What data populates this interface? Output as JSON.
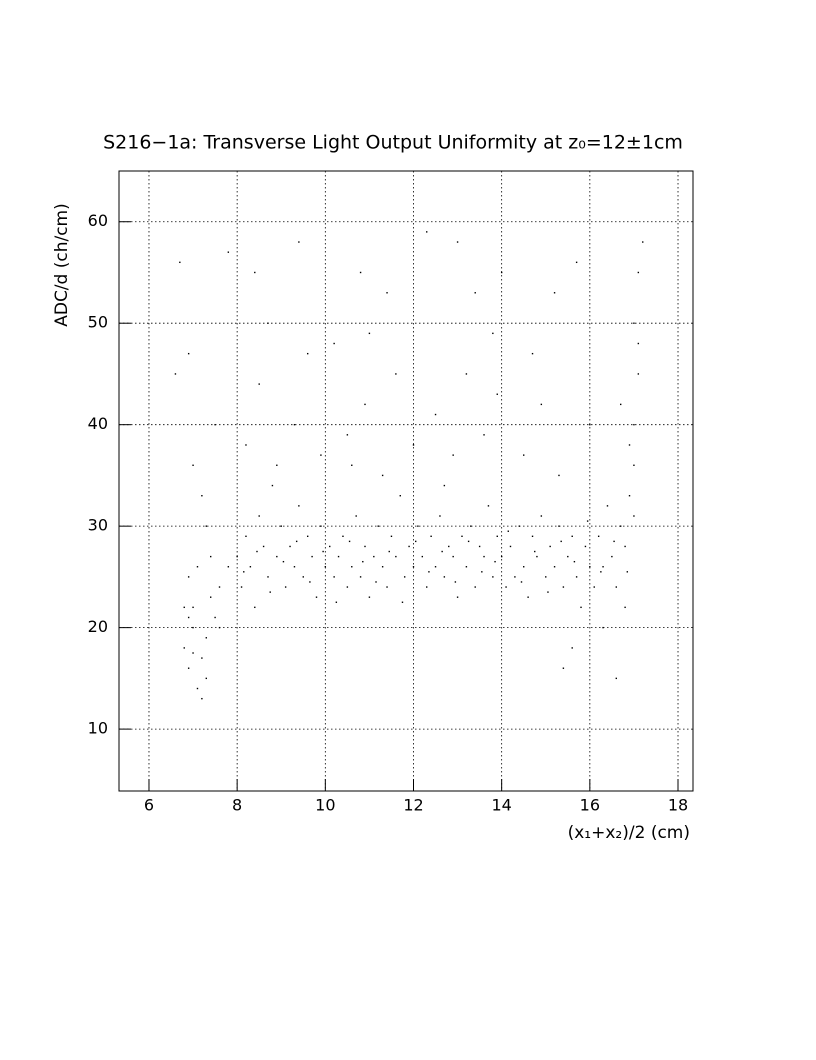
{
  "chart_data": {
    "type": "scatter",
    "title": "S216−1a: Transverse Light Output Uniformity at z₀=12±1cm",
    "x_label": "(x₁+x₂)/2 (cm)",
    "y_label": "ADC/d (ch/cm)",
    "color": "#000000",
    "grid": true,
    "xlim": [
      5.32,
      18.34
    ],
    "ylim": [
      3.9,
      65
    ],
    "xticks": [
      6,
      8,
      10,
      12,
      14,
      16,
      18
    ],
    "yticks": [
      10,
      20,
      30,
      40,
      50,
      60
    ],
    "x": [
      6.8,
      6.9,
      7.0,
      7.1,
      7.2,
      7.0,
      6.9,
      7.3,
      7.4,
      7.2,
      7.5,
      7.6,
      7.1,
      6.9,
      7.3,
      7.0,
      6.8,
      7.4,
      7.6,
      7.8,
      6.6,
      6.9,
      7.2,
      7.0,
      6.7,
      7.8,
      7.5,
      7.3,
      8.0,
      8.1,
      8.2,
      8.3,
      8.5,
      8.4,
      8.6,
      8.7,
      8.8,
      8.9,
      9.0,
      9.1,
      9.2,
      9.3,
      9.4,
      9.5,
      9.6,
      9.7,
      9.8,
      9.9,
      10.0,
      10.1,
      8.2,
      8.5,
      8.9,
      9.3,
      9.6,
      8.4,
      9.4,
      10.2,
      9.9,
      8.7,
      10.2,
      10.3,
      10.4,
      10.5,
      10.6,
      10.7,
      10.8,
      10.9,
      11.0,
      11.1,
      11.2,
      11.3,
      11.4,
      11.5,
      11.6,
      11.7,
      11.8,
      11.9,
      12.0,
      12.1,
      10.5,
      10.9,
      11.3,
      11.6,
      10.8,
      11.4,
      12.0,
      12.3,
      11.0,
      10.6,
      12.2,
      12.3,
      12.4,
      12.5,
      12.6,
      12.7,
      12.8,
      12.9,
      13.0,
      13.1,
      13.2,
      13.3,
      13.4,
      13.5,
      13.6,
      13.7,
      13.8,
      13.9,
      14.0,
      14.1,
      12.5,
      12.9,
      13.2,
      13.6,
      13.0,
      13.4,
      13.8,
      12.7,
      14.0,
      13.9,
      14.2,
      14.3,
      14.4,
      14.5,
      14.6,
      14.7,
      14.8,
      14.9,
      15.0,
      15.1,
      15.2,
      15.3,
      15.4,
      15.5,
      15.6,
      15.7,
      15.8,
      15.9,
      16.0,
      16.1,
      14.5,
      14.9,
      15.3,
      15.6,
      15.7,
      15.2,
      14.7,
      16.0,
      15.4,
      16.3,
      16.2,
      16.3,
      16.4,
      16.5,
      16.6,
      16.7,
      16.8,
      16.9,
      17.0,
      17.0,
      17.1,
      17.0,
      17.1,
      17.2,
      16.9,
      16.8,
      17.0,
      16.6,
      16.7,
      17.1,
      8.15,
      8.45,
      8.75,
      9.05,
      9.35,
      9.65,
      9.95,
      10.25,
      10.55,
      10.85,
      11.15,
      11.45,
      11.75,
      12.05,
      12.35,
      12.65,
      12.95,
      13.25,
      13.55,
      13.85,
      14.15,
      14.45,
      14.75,
      15.05,
      15.35,
      15.65,
      15.95,
      16.25,
      16.55,
      16.85
    ],
    "values": [
      18,
      16,
      20,
      14,
      17,
      22,
      25,
      19,
      23,
      13,
      21,
      24,
      26,
      21,
      15,
      17.5,
      22,
      27,
      20,
      26,
      45,
      47,
      33,
      36,
      56,
      57,
      40,
      30,
      27,
      24,
      29,
      26,
      31,
      22,
      28,
      25,
      34,
      27,
      30,
      24,
      28,
      26,
      32,
      25,
      29,
      27,
      23,
      30,
      26,
      28,
      38,
      44,
      36,
      40,
      47,
      55,
      58,
      48,
      37,
      50,
      25,
      27,
      29,
      24,
      26,
      31,
      25,
      28,
      23,
      27,
      30,
      26,
      24,
      29,
      27,
      33,
      25,
      28,
      26,
      30,
      39,
      42,
      35,
      45,
      55,
      53,
      38,
      59,
      49,
      36,
      27,
      24,
      29,
      26,
      31,
      25,
      28,
      27,
      23,
      29,
      26,
      30,
      24,
      28,
      27,
      32,
      25,
      29,
      27,
      24,
      41,
      37,
      45,
      39,
      58,
      53,
      49,
      34,
      55,
      43,
      28,
      25,
      30,
      26,
      23,
      29,
      27,
      31,
      25,
      28,
      26,
      30,
      24,
      27,
      29,
      25,
      22,
      28,
      26,
      24,
      37,
      42,
      35,
      18,
      56,
      53,
      47,
      40,
      16,
      20,
      29,
      26,
      32,
      27,
      24,
      30,
      28,
      33,
      36,
      40,
      45,
      50,
      55,
      58,
      38,
      22,
      31,
      15,
      42,
      48,
      25.5,
      27.5,
      23.5,
      26.5,
      28.5,
      24.5,
      27.5,
      22.5,
      28.5,
      26.5,
      24.5,
      27.5,
      22.5,
      28.5,
      25.5,
      27.5,
      24.5,
      28.5,
      25.5,
      26.5,
      29.5,
      24.5,
      27.5,
      23.5,
      28.5,
      26.5,
      30.5,
      25.5,
      28.5,
      25.5
    ]
  }
}
